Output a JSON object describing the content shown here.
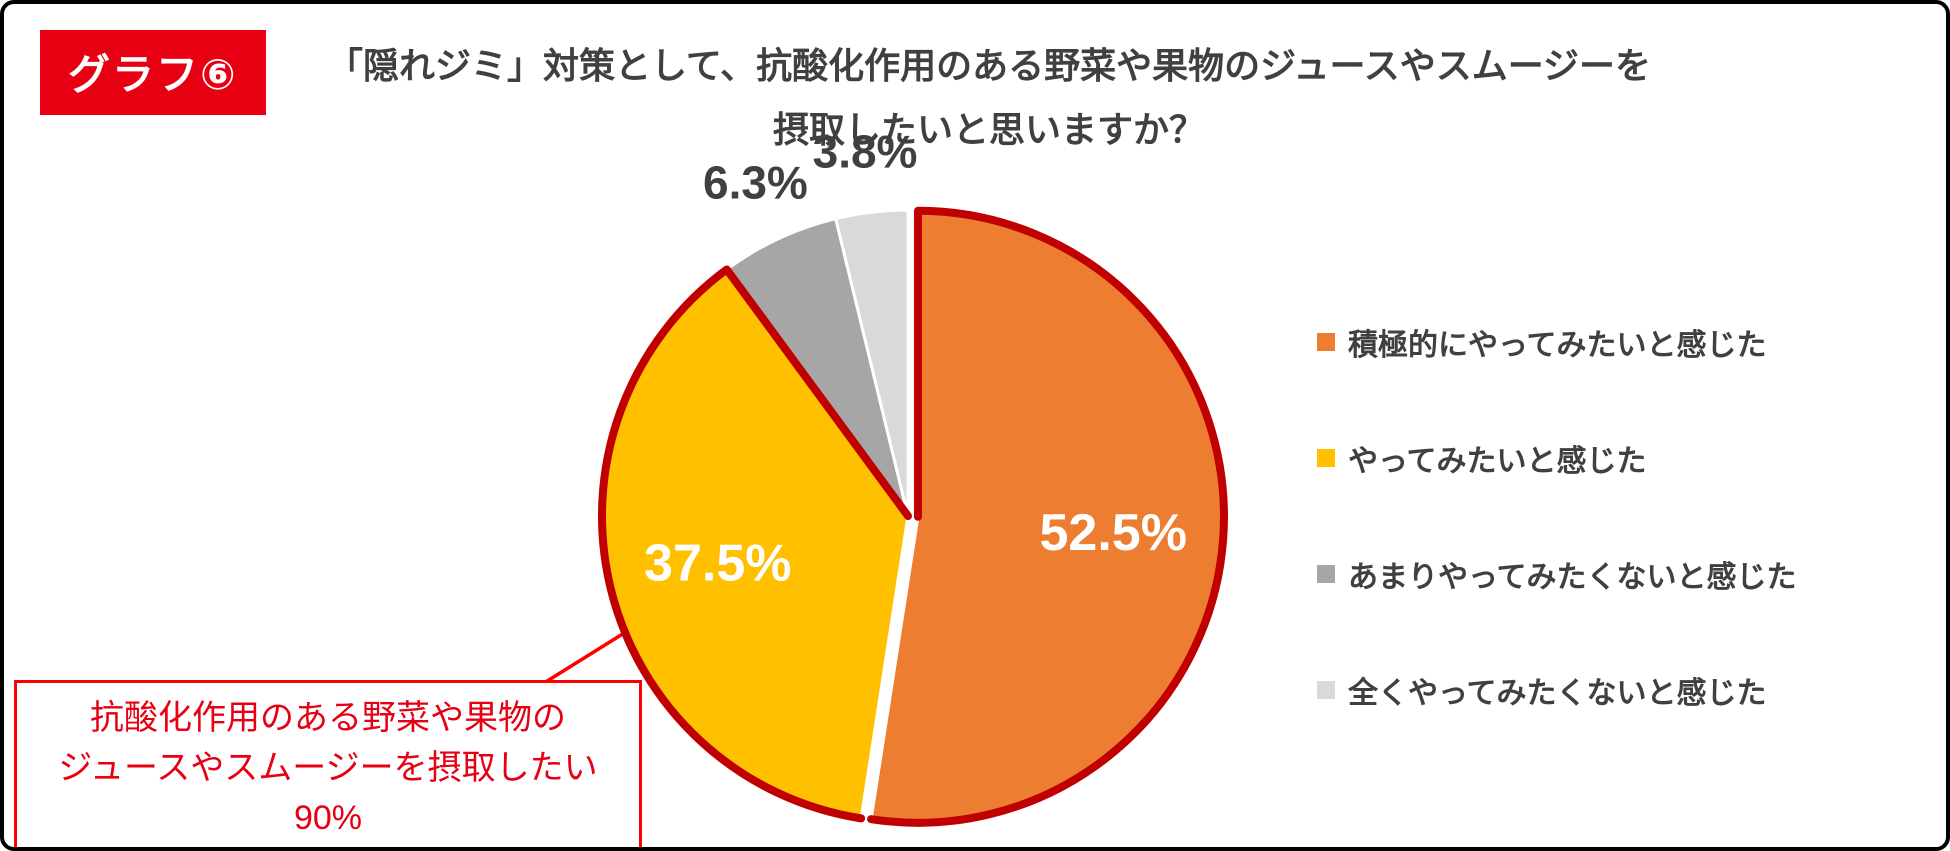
{
  "page": {
    "badge": "グラフ⑥",
    "title_line1": "「隠れジミ」対策として、抗酸化作用のある野菜や果物のジュースやスムージーを",
    "title_line2": "摂取したいと思いますか？"
  },
  "chart_data": {
    "type": "pie",
    "title": "「隠れジミ」対策として、抗酸化作用のある野菜や果物のジュースやスムージーを摂取したいと思いますか？",
    "units": "%",
    "start_angle": "top",
    "direction": "clockwise",
    "legend_position": "right",
    "slices": [
      {
        "label": "積極的にやってみたいと感じた",
        "value": 52.5,
        "value_label": "52.5%",
        "color": "#ED7D31",
        "label_inside": true,
        "exploded": true
      },
      {
        "label": "やってみたいと感じた",
        "value": 37.5,
        "value_label": "37.5%",
        "color": "#FFC000",
        "label_inside": true,
        "exploded": false
      },
      {
        "label": "あまりやってみたくないと感じた",
        "value": 6.3,
        "value_label": "6.3%",
        "color": "#A6A6A6",
        "label_inside": false,
        "exploded": false
      },
      {
        "label": "全くやってみたくないと感じた",
        "value": 3.8,
        "value_label": "3.8%",
        "color": "#D9D9D9",
        "label_inside": false,
        "exploded": false
      }
    ],
    "highlight": {
      "slice_indices": [
        0,
        1
      ],
      "combined_value": 90,
      "combined_value_label": "90%",
      "outline_color": "#C00000"
    }
  },
  "callout": {
    "line1": "抗酸化作用のある野菜や果物の",
    "line2": "ジュースやスムージーを摂取したい",
    "line3": "90%"
  },
  "colors": {
    "badge_bg": "#E60012",
    "badge_text": "#FFFFFF",
    "title_text": "#404040",
    "highlight_outline": "#C00000",
    "callout_red": "#FF0000"
  }
}
